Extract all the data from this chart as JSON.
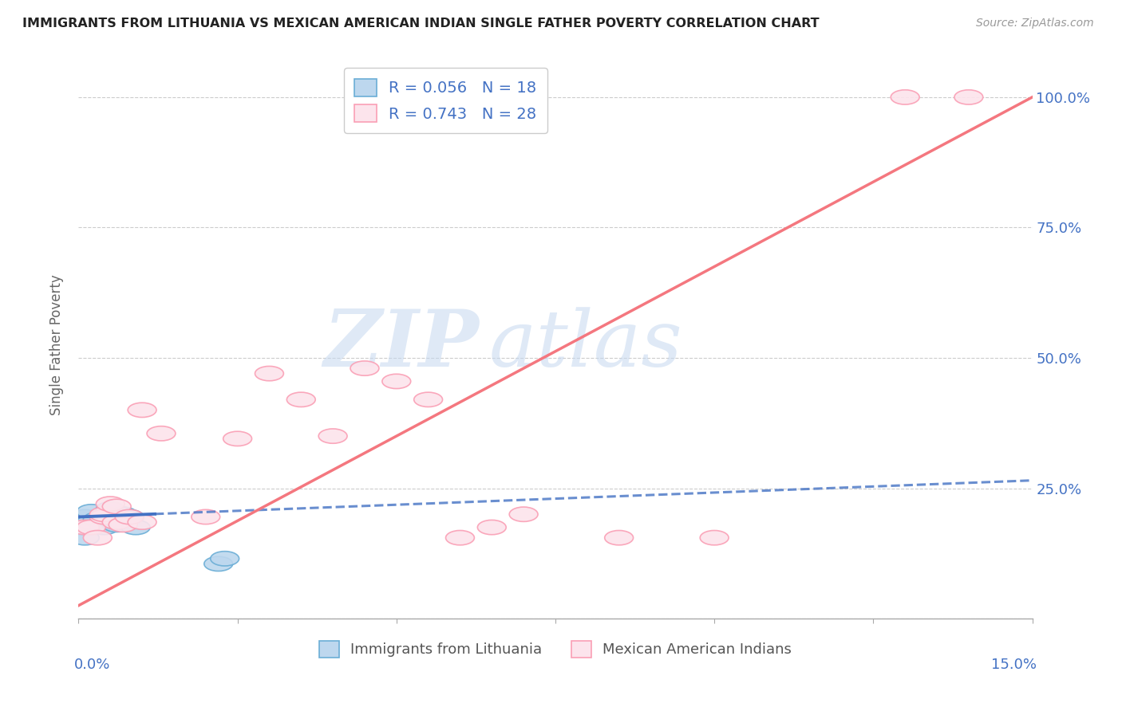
{
  "title": "IMMIGRANTS FROM LITHUANIA VS MEXICAN AMERICAN INDIAN SINGLE FATHER POVERTY CORRELATION CHART",
  "source": "Source: ZipAtlas.com",
  "ylabel": "Single Father Poverty",
  "legend_title1": "Immigrants from Lithuania",
  "legend_title2": "Mexican American Indians",
  "blue_color": "#6baed6",
  "blue_fill": "#bdd7ee",
  "pink_color": "#fa9fb5",
  "pink_fill": "#fce4ec",
  "blue_line_color": "#4472c4",
  "pink_line_color": "#f4777f",
  "watermark_zip": "ZIP",
  "watermark_atlas": "atlas",
  "xlim": [
    0.0,
    0.15
  ],
  "ylim": [
    0.0,
    1.05
  ],
  "blue_scatter_x": [
    0.0005,
    0.001,
    0.001,
    0.002,
    0.002,
    0.003,
    0.004,
    0.004,
    0.005,
    0.005,
    0.006,
    0.006,
    0.007,
    0.007,
    0.008,
    0.009,
    0.022,
    0.023
  ],
  "blue_scatter_y": [
    0.175,
    0.195,
    0.155,
    0.185,
    0.205,
    0.19,
    0.195,
    0.175,
    0.21,
    0.19,
    0.18,
    0.19,
    0.2,
    0.185,
    0.195,
    0.175,
    0.105,
    0.115
  ],
  "pink_scatter_x": [
    0.001,
    0.002,
    0.003,
    0.004,
    0.004,
    0.005,
    0.006,
    0.006,
    0.007,
    0.008,
    0.01,
    0.01,
    0.013,
    0.02,
    0.025,
    0.03,
    0.035,
    0.04,
    0.045,
    0.05,
    0.055,
    0.06,
    0.065,
    0.07,
    0.085,
    0.1,
    0.13,
    0.14
  ],
  "pink_scatter_y": [
    0.175,
    0.175,
    0.155,
    0.195,
    0.2,
    0.22,
    0.185,
    0.215,
    0.18,
    0.195,
    0.4,
    0.185,
    0.355,
    0.195,
    0.345,
    0.47,
    0.42,
    0.35,
    0.48,
    0.455,
    0.42,
    0.155,
    0.175,
    0.2,
    0.155,
    0.155,
    1.0,
    1.0
  ],
  "blue_line_x": [
    0.0,
    0.15
  ],
  "blue_line_y": [
    0.195,
    0.265
  ],
  "pink_line_x": [
    0.0,
    0.15
  ],
  "pink_line_y": [
    0.025,
    1.0
  ]
}
